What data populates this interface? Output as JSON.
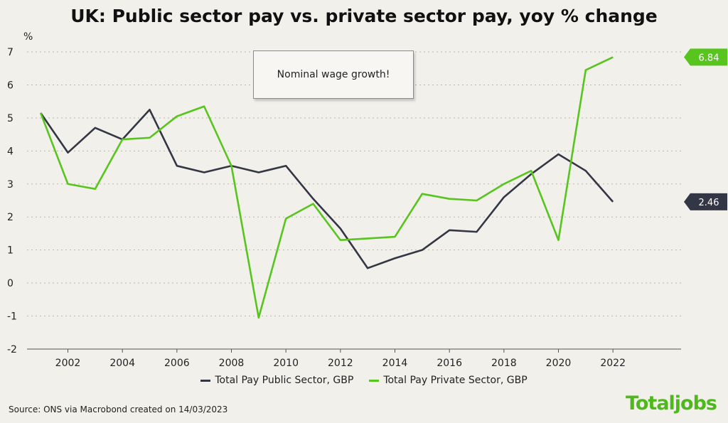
{
  "header": {
    "title": "UK: Public sector pay vs. private sector pay, yoy % change"
  },
  "chart_data": {
    "type": "line",
    "title": "UK: Public sector pay vs. private sector pay, yoy % change",
    "ylabel": "%",
    "xlabel": "",
    "ylim": [
      -2,
      7
    ],
    "xlim": [
      2000.5,
      2024.5
    ],
    "yticks": [
      -2,
      -1,
      0,
      1,
      2,
      3,
      4,
      5,
      6,
      7
    ],
    "xticks": [
      2002,
      2004,
      2006,
      2008,
      2010,
      2012,
      2014,
      2016,
      2018,
      2020,
      2022
    ],
    "grid": "horizontal dotted",
    "legend_position": "bottom",
    "x": [
      2001,
      2002,
      2003,
      2004,
      2005,
      2006,
      2007,
      2008,
      2009,
      2010,
      2011,
      2012,
      2013,
      2014,
      2015,
      2016,
      2017,
      2018,
      2019,
      2020,
      2021,
      2022
    ],
    "series": [
      {
        "name": "Total Pay Public Sector, GBP",
        "color": "#333644",
        "values": [
          5.15,
          3.95,
          4.7,
          4.35,
          5.25,
          3.55,
          3.35,
          3.55,
          3.35,
          3.55,
          2.55,
          1.65,
          0.45,
          0.75,
          1.0,
          1.6,
          1.55,
          2.6,
          3.3,
          3.9,
          3.4,
          2.46
        ],
        "end_label": "2.46"
      },
      {
        "name": "Total Pay Private Sector, GBP",
        "color": "#58c51e",
        "values": [
          5.15,
          3.0,
          2.85,
          4.35,
          4.4,
          5.05,
          5.35,
          3.55,
          -1.05,
          1.95,
          2.4,
          1.3,
          1.35,
          1.4,
          2.7,
          2.55,
          2.5,
          3.0,
          3.4,
          1.3,
          6.45,
          6.84
        ],
        "end_label": "6.84"
      }
    ],
    "annotations": [
      {
        "text": "Nominal wage growth!"
      }
    ]
  },
  "footer": {
    "source": "Source: ONS via Macrobond created on 14/03/2023",
    "logo": "Totaljobs",
    "logo_color": "#4fb81d"
  }
}
